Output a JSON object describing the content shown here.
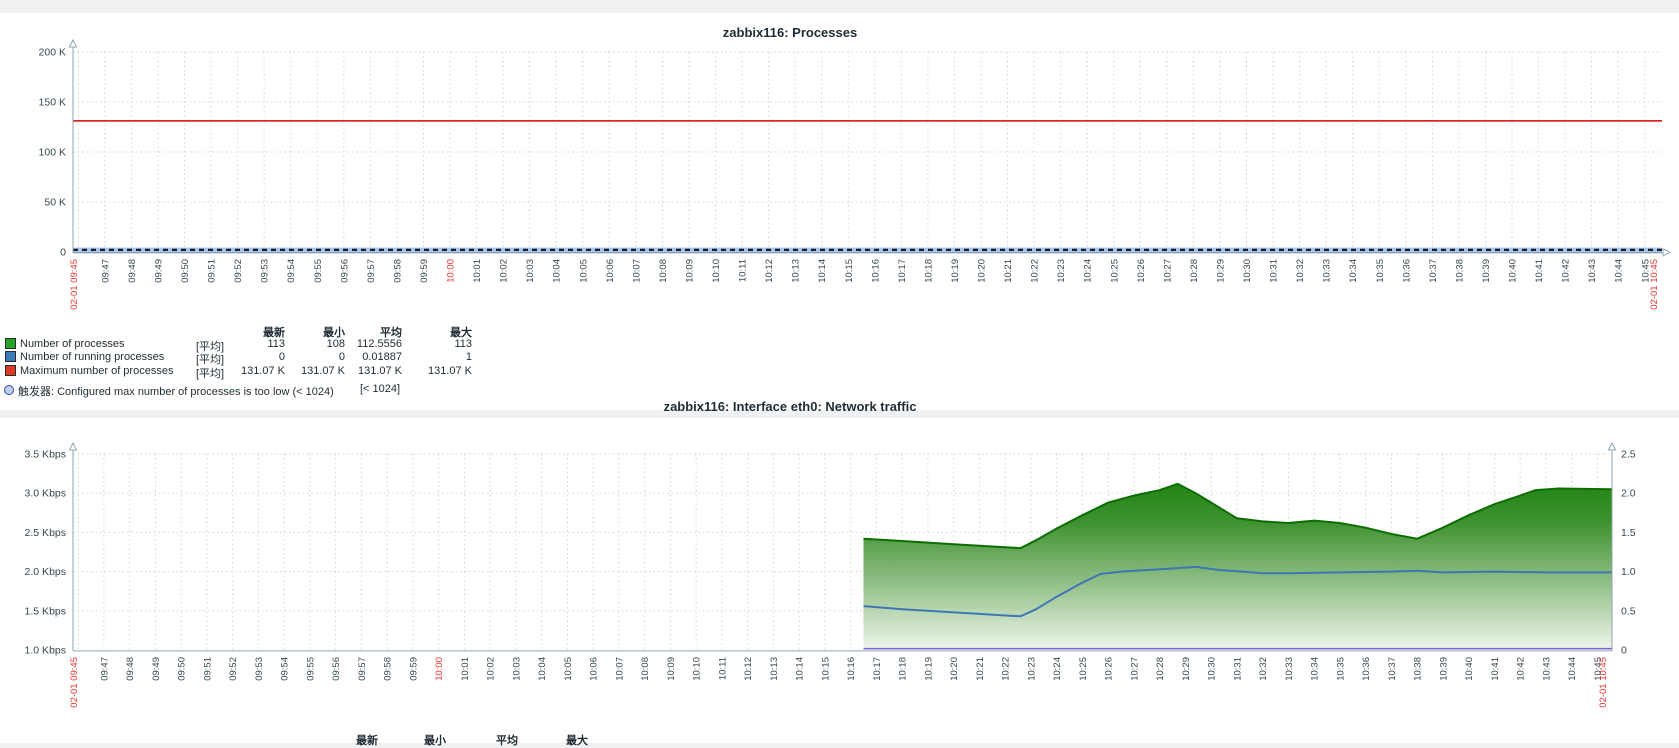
{
  "app": {
    "background_color": "#f0f1f2",
    "card_color": "#ffffff",
    "red_label_color": "#e33734",
    "tick_label_color": "#37474f",
    "grid_color": "#ccd6dc",
    "axis_color": "#8fa5b0"
  },
  "legend_headers": [
    "最新",
    "最小",
    "平均",
    "最大"
  ],
  "time_axis": {
    "first_label": "02-01 09:45",
    "last_label": "02-01 10:45",
    "red_labels": [
      "02-01 09:45",
      "10:00",
      "02-01 10:45"
    ],
    "minute_labels": [
      "09:47",
      "09:48",
      "09:49",
      "09:50",
      "09:51",
      "09:52",
      "09:53",
      "09:54",
      "09:55",
      "09:56",
      "09:57",
      "09:58",
      "09:59",
      "10:00",
      "10:01",
      "10:02",
      "10:03",
      "10:04",
      "10:05",
      "10:06",
      "10:07",
      "10:08",
      "10:09",
      "10:10",
      "10:11",
      "10:12",
      "10:13",
      "10:14",
      "10:15",
      "10:16",
      "10:17",
      "10:18",
      "10:19",
      "10:20",
      "10:21",
      "10:22",
      "10:23",
      "10:24",
      "10:25",
      "10:26",
      "10:27",
      "10:28",
      "10:29",
      "10:30",
      "10:31",
      "10:32",
      "10:33",
      "10:34",
      "10:35",
      "10:36",
      "10:37",
      "10:38",
      "10:39",
      "10:40",
      "10:41",
      "10:42",
      "10:43",
      "10:44",
      "10:45"
    ]
  },
  "chart_data": [
    {
      "type": "line",
      "title": "zabbix116: Processes",
      "y_ticks": [
        "200 K",
        "150 K",
        "100 K",
        "50 K",
        "0"
      ],
      "ylim": [
        0,
        200000
      ],
      "grid": true,
      "legend_position": "bottom",
      "series": [
        {
          "name": "Number of processes",
          "func": "[平均]",
          "color": "#26a226",
          "constant_value": 113,
          "stats": [
            "113",
            "108",
            "112.5556",
            "113"
          ]
        },
        {
          "name": "Number of running processes",
          "func": "[平均]",
          "color": "#3d7ab8",
          "constant_value": 0,
          "stats": [
            "0",
            "0",
            "0.01887",
            "1"
          ]
        },
        {
          "name": "Maximum number of processes",
          "func": "[平均]",
          "color": "#dd3b26",
          "constant_value": 131070,
          "stats": [
            "131.07 K",
            "131.07 K",
            "131.07 K",
            "131.07 K"
          ]
        }
      ],
      "trigger": {
        "label": "触发器: Configured max number of processes is too low (< 1024)",
        "threshold_label": "[< 1024]",
        "value": 1024,
        "band_color": "#a9c6f0",
        "dash_color": "#1d1d1d"
      }
    },
    {
      "type": "area",
      "title": "zabbix116: Interface eth0: Network traffic",
      "left_axis": {
        "ticks": [
          "3.5 Kbps",
          "3.0 Kbps",
          "2.5 Kbps",
          "2.0 Kbps",
          "1.5 Kbps",
          "1.0 Kbps"
        ],
        "lim": [
          1.0,
          3.5
        ],
        "unit": "Kbps"
      },
      "right_axis": {
        "ticks": [
          "2.5",
          "2.0",
          "1.5",
          "1.0",
          "0.5",
          "0"
        ],
        "lim": [
          0,
          2.5
        ]
      },
      "grid": true,
      "data_starts_at": "10:16.5",
      "series": [
        {
          "name": "incoming-traffic-area",
          "axis": "left",
          "style": "gradient-area",
          "edge_color": "#0c6e00",
          "gradient": [
            "#0d7a00",
            "#3e9230",
            "#9dc693",
            "#eff6ed"
          ],
          "points_minutes_after_0945_kbps": [
            [
              31.5,
              2.42
            ],
            [
              32,
              2.41
            ],
            [
              33,
              2.39
            ],
            [
              34,
              2.37
            ],
            [
              35,
              2.35
            ],
            [
              36,
              2.33
            ],
            [
              37,
              2.31
            ],
            [
              37.6,
              2.3
            ],
            [
              38.2,
              2.4
            ],
            [
              39,
              2.55
            ],
            [
              40,
              2.72
            ],
            [
              41,
              2.88
            ],
            [
              42,
              2.97
            ],
            [
              43,
              3.04
            ],
            [
              43.7,
              3.12
            ],
            [
              44.4,
              3.0
            ],
            [
              45,
              2.88
            ],
            [
              46,
              2.68
            ],
            [
              47,
              2.64
            ],
            [
              48,
              2.62
            ],
            [
              49,
              2.65
            ],
            [
              50,
              2.62
            ],
            [
              51,
              2.56
            ],
            [
              52,
              2.48
            ],
            [
              53,
              2.42
            ],
            [
              54,
              2.56
            ],
            [
              55,
              2.72
            ],
            [
              56,
              2.86
            ],
            [
              57,
              2.97
            ],
            [
              57.6,
              3.04
            ],
            [
              58.5,
              3.06
            ],
            [
              60.55,
              3.05
            ]
          ]
        },
        {
          "name": "outgoing-traffic-line",
          "axis": "right",
          "style": "line",
          "color": "#3e76b5",
          "points_minutes_after_0945": [
            [
              31.5,
              0.56
            ],
            [
              33,
              0.52
            ],
            [
              34,
              0.5
            ],
            [
              35,
              0.48
            ],
            [
              36,
              0.46
            ],
            [
              37,
              0.44
            ],
            [
              37.6,
              0.43
            ],
            [
              38.2,
              0.52
            ],
            [
              39,
              0.68
            ],
            [
              40,
              0.86
            ],
            [
              40.7,
              0.97
            ],
            [
              41.5,
              1.0
            ],
            [
              43,
              1.03
            ],
            [
              44.4,
              1.06
            ],
            [
              45.3,
              1.02
            ],
            [
              46.2,
              1.0
            ],
            [
              47,
              0.98
            ],
            [
              48,
              0.98
            ],
            [
              50,
              0.99
            ],
            [
              52,
              1.0
            ],
            [
              53,
              1.01
            ],
            [
              54,
              0.99
            ],
            [
              56,
              1.0
            ],
            [
              58,
              0.99
            ],
            [
              60.55,
              0.99
            ]
          ]
        },
        {
          "name": "baseline-line",
          "axis": "right",
          "style": "line",
          "color": "#7b5fd6",
          "points_minutes_after_0945": [
            [
              31.5,
              0.015
            ],
            [
              60.55,
              0.015
            ]
          ]
        }
      ]
    }
  ]
}
